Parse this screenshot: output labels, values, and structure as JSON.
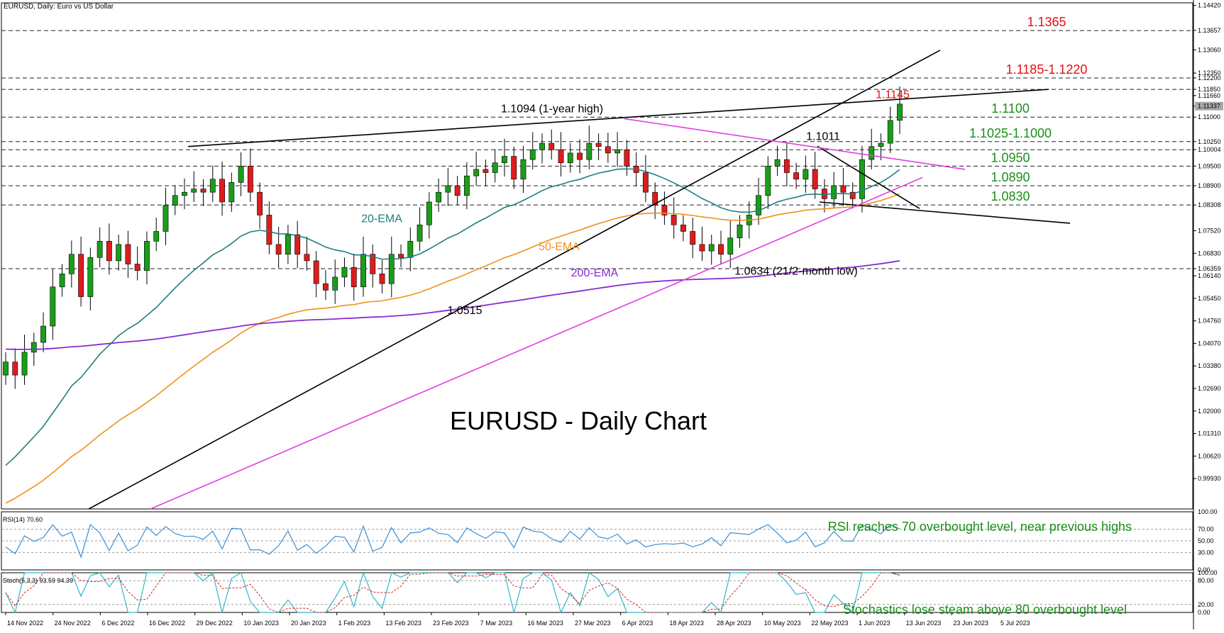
{
  "window": {
    "title": "EURUSD, Daily:  Euro vs US Dollar",
    "rsi_label": "RSI(14) 70.60",
    "stoch_label": "Stoch(5,3,3) 93.59 94.39"
  },
  "colors": {
    "candle_up": "#1a9e1a",
    "candle_down": "#e01b1b",
    "ema20": "#1f7f7f",
    "ema50": "#f0901a",
    "ema200": "#8a2ad0",
    "trend_black": "#000000",
    "trend_magenta": "#e040e0",
    "label_red": "#e81010",
    "label_green": "#1a8f1a",
    "rsi_line": "#3a8fd6",
    "stoch_main": "#30b8c8",
    "stoch_signal": "#e02020"
  },
  "chart_data": [
    {
      "type": "candlestick",
      "title": "EURUSD - Daily Chart",
      "ylim": [
        0.99,
        1.145
      ],
      "price_ticks": [
        "1.14420",
        "1.13657",
        "1.13060",
        "1.12350",
        "1.12200",
        "1.11850",
        "1.11660",
        "1.11337",
        "1.11000",
        "1.10250",
        "1.10004",
        "1.09500",
        "1.08900",
        "1.08308",
        "1.07520",
        "1.06830",
        "1.06359",
        "1.06140",
        "1.05450",
        "1.04760",
        "1.04070",
        "1.03380",
        "1.02690",
        "1.02000",
        "1.01310",
        "1.00620",
        "0.99930"
      ],
      "last_price": "1.11337",
      "x_dates": [
        "14 Nov 2022",
        "24 Nov 2022",
        "6 Dec 2022",
        "16 Dec 2022",
        "29 Dec 2022",
        "10 Jan 2023",
        "20 Jan 2023",
        "1 Feb 2023",
        "13 Feb 2023",
        "23 Feb 2023",
        "7 Mar 2023",
        "16 Mar 2023",
        "27 Mar 2023",
        "6 Apr 2023",
        "18 Apr 2023",
        "28 Apr 2023",
        "10 May 2023",
        "22 May 2023",
        "1 Jun 2023",
        "13 Jun 2023",
        "23 Jun 2023",
        "5 Jul 2023"
      ],
      "close_series": [
        1.035,
        1.031,
        1.038,
        1.041,
        1.046,
        1.058,
        1.062,
        1.068,
        1.055,
        1.067,
        1.072,
        1.066,
        1.071,
        1.065,
        1.063,
        1.072,
        1.075,
        1.083,
        1.086,
        1.087,
        1.088,
        1.087,
        1.091,
        1.084,
        1.09,
        1.095,
        1.087,
        1.08,
        1.071,
        1.068,
        1.074,
        1.068,
        1.066,
        1.059,
        1.057,
        1.061,
        1.064,
        1.058,
        1.068,
        1.062,
        1.059,
        1.068,
        1.067,
        1.072,
        1.077,
        1.084,
        1.087,
        1.089,
        1.086,
        1.092,
        1.094,
        1.093,
        1.096,
        1.098,
        1.091,
        1.097,
        1.1,
        1.102,
        1.1,
        1.096,
        1.099,
        1.097,
        1.102,
        1.101,
        1.099,
        1.1,
        1.095,
        1.093,
        1.087,
        1.083,
        1.08,
        1.077,
        1.075,
        1.071,
        1.069,
        1.071,
        1.068,
        1.073,
        1.077,
        1.08,
        1.086,
        1.095,
        1.097,
        1.093,
        1.091,
        1.094,
        1.088,
        1.085,
        1.089,
        1.087,
        1.085,
        1.097,
        1.101,
        1.102,
        1.109,
        1.114
      ],
      "horizontal_levels": [
        {
          "value": 1.1365,
          "label": "1.1365",
          "color": "red"
        },
        {
          "value": 1.122,
          "label": "1.1185-1.1220",
          "color": "red"
        },
        {
          "value": 1.1185,
          "label": "",
          "color": "red"
        },
        {
          "value": 1.11,
          "label": "1.1100",
          "color": "green"
        },
        {
          "value": 1.1025,
          "label": "1.1025-1.1000",
          "color": "green"
        },
        {
          "value": 1.1,
          "label": "",
          "color": "green"
        },
        {
          "value": 1.095,
          "label": "1.0950",
          "color": "green"
        },
        {
          "value": 1.089,
          "label": "1.0890",
          "color": "green"
        },
        {
          "value": 1.0831,
          "label": "1.0830",
          "color": "green"
        },
        {
          "value": 1.0636,
          "label": "",
          "color": "none"
        }
      ],
      "annotations": [
        {
          "text": "1.1145",
          "color": "red"
        },
        {
          "text": "1.1094 (1-year high)",
          "color": "black"
        },
        {
          "text": "1.1011",
          "color": "black"
        },
        {
          "text": "1.0634 (21/2-month low)",
          "color": "black"
        },
        {
          "text": "1.0515",
          "color": "black"
        },
        {
          "text": "20-EMA",
          "color": "ema20"
        },
        {
          "text": "50-EMA",
          "color": "ema50"
        },
        {
          "text": "200-EMA",
          "color": "ema200"
        }
      ]
    },
    {
      "type": "line",
      "name": "RSI(14)",
      "ylim": [
        0,
        100
      ],
      "ticks": [
        "100.00",
        "70.00",
        "50.00",
        "30.00",
        "0.00"
      ],
      "last_value": 70.6,
      "annotation": "RSI reaches 70 overbought level, near previous highs"
    },
    {
      "type": "line",
      "name": "Stoch(5,3,3)",
      "ylim": [
        0,
        100
      ],
      "ticks": [
        "100.00",
        "80.00",
        "20.00",
        "0.00"
      ],
      "main_value": 93.59,
      "signal_value": 94.39,
      "annotation": "Stochastics lose steam above 80 overbought level"
    }
  ]
}
